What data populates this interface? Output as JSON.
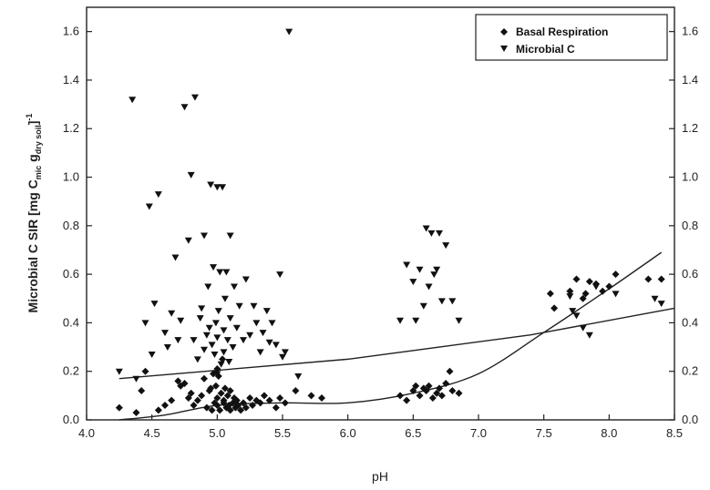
{
  "chart_data": {
    "type": "scatter",
    "xlabel": "pH",
    "ylabel": {
      "prefix": "Microbial C SIR [mg C",
      "sub1": "mic",
      "mid": " g",
      "sub2": "dry soil",
      "bracket": "]",
      "sup": "-1"
    },
    "xlim": [
      4.0,
      8.5
    ],
    "ylim": [
      0.0,
      1.7
    ],
    "x_ticks": [
      "4.0",
      "4.5",
      "5.0",
      "5.5",
      "6.0",
      "6.5",
      "7.0",
      "7.5",
      "8.0",
      "8.5"
    ],
    "y_ticks": [
      "0.0",
      "0.2",
      "0.4",
      "0.6",
      "0.8",
      "1.0",
      "1.2",
      "1.4",
      "1.6"
    ],
    "x_tick_values": [
      4.0,
      4.5,
      5.0,
      5.5,
      6.0,
      6.5,
      7.0,
      7.5,
      8.0,
      8.5
    ],
    "y_tick_values": [
      0.0,
      0.2,
      0.4,
      0.6,
      0.8,
      1.0,
      1.2,
      1.4,
      1.6
    ],
    "grid": false,
    "legend_position": "top-right",
    "series": [
      {
        "name": "Basal Respiration",
        "marker": "diamond",
        "points": [
          [
            4.25,
            0.05
          ],
          [
            4.38,
            0.03
          ],
          [
            4.42,
            0.12
          ],
          [
            4.45,
            0.2
          ],
          [
            4.55,
            0.04
          ],
          [
            4.6,
            0.06
          ],
          [
            4.65,
            0.08
          ],
          [
            4.7,
            0.16
          ],
          [
            4.72,
            0.14
          ],
          [
            4.75,
            0.15
          ],
          [
            4.78,
            0.09
          ],
          [
            4.8,
            0.11
          ],
          [
            4.82,
            0.06
          ],
          [
            4.85,
            0.08
          ],
          [
            4.88,
            0.1
          ],
          [
            4.9,
            0.17
          ],
          [
            4.92,
            0.05
          ],
          [
            4.94,
            0.12
          ],
          [
            4.95,
            0.13
          ],
          [
            4.96,
            0.04
          ],
          [
            4.97,
            0.19
          ],
          [
            4.98,
            0.07
          ],
          [
            4.99,
            0.14
          ],
          [
            5.0,
            0.06
          ],
          [
            5.0,
            0.09
          ],
          [
            5.0,
            0.21
          ],
          [
            5.01,
            0.18
          ],
          [
            5.02,
            0.04
          ],
          [
            5.03,
            0.11
          ],
          [
            5.04,
            0.25
          ],
          [
            5.05,
            0.07
          ],
          [
            5.05,
            0.08
          ],
          [
            5.06,
            0.13
          ],
          [
            5.07,
            0.05
          ],
          [
            5.08,
            0.1
          ],
          [
            5.09,
            0.06
          ],
          [
            5.1,
            0.12
          ],
          [
            5.1,
            0.04
          ],
          [
            5.12,
            0.07
          ],
          [
            5.13,
            0.09
          ],
          [
            5.14,
            0.05
          ],
          [
            5.15,
            0.08
          ],
          [
            5.16,
            0.06
          ],
          [
            5.18,
            0.04
          ],
          [
            5.2,
            0.07
          ],
          [
            5.22,
            0.05
          ],
          [
            5.25,
            0.09
          ],
          [
            5.27,
            0.06
          ],
          [
            5.3,
            0.08
          ],
          [
            5.33,
            0.07
          ],
          [
            5.36,
            0.1
          ],
          [
            5.4,
            0.08
          ],
          [
            5.45,
            0.05
          ],
          [
            5.48,
            0.09
          ],
          [
            5.52,
            0.07
          ],
          [
            5.6,
            0.12
          ],
          [
            5.72,
            0.1
          ],
          [
            5.8,
            0.09
          ],
          [
            6.4,
            0.1
          ],
          [
            6.45,
            0.08
          ],
          [
            6.5,
            0.12
          ],
          [
            6.52,
            0.14
          ],
          [
            6.55,
            0.1
          ],
          [
            6.58,
            0.13
          ],
          [
            6.6,
            0.12
          ],
          [
            6.62,
            0.14
          ],
          [
            6.65,
            0.09
          ],
          [
            6.68,
            0.11
          ],
          [
            6.7,
            0.13
          ],
          [
            6.72,
            0.1
          ],
          [
            6.75,
            0.15
          ],
          [
            6.78,
            0.2
          ],
          [
            6.8,
            0.12
          ],
          [
            6.85,
            0.11
          ],
          [
            7.55,
            0.52
          ],
          [
            7.58,
            0.46
          ],
          [
            7.7,
            0.53
          ],
          [
            7.75,
            0.58
          ],
          [
            7.8,
            0.5
          ],
          [
            7.82,
            0.52
          ],
          [
            7.85,
            0.57
          ],
          [
            7.9,
            0.56
          ],
          [
            7.95,
            0.53
          ],
          [
            8.0,
            0.55
          ],
          [
            8.05,
            0.6
          ],
          [
            8.3,
            0.58
          ],
          [
            8.4,
            0.58
          ]
        ]
      },
      {
        "name": "Microbial C",
        "marker": "triangle-down",
        "points": [
          [
            4.25,
            0.2
          ],
          [
            4.35,
            1.32
          ],
          [
            4.38,
            0.17
          ],
          [
            4.45,
            0.4
          ],
          [
            4.48,
            0.88
          ],
          [
            4.5,
            0.27
          ],
          [
            4.52,
            0.48
          ],
          [
            4.55,
            0.93
          ],
          [
            4.6,
            0.36
          ],
          [
            4.62,
            0.3
          ],
          [
            4.65,
            0.44
          ],
          [
            4.68,
            0.67
          ],
          [
            4.7,
            0.33
          ],
          [
            4.72,
            0.41
          ],
          [
            4.75,
            1.29
          ],
          [
            4.78,
            0.74
          ],
          [
            4.8,
            1.01
          ],
          [
            4.82,
            0.33
          ],
          [
            4.83,
            1.33
          ],
          [
            4.85,
            0.25
          ],
          [
            4.87,
            0.42
          ],
          [
            4.88,
            0.46
          ],
          [
            4.9,
            0.76
          ],
          [
            4.9,
            0.29
          ],
          [
            4.92,
            0.35
          ],
          [
            4.93,
            0.55
          ],
          [
            4.94,
            0.38
          ],
          [
            4.95,
            0.97
          ],
          [
            4.96,
            0.31
          ],
          [
            4.97,
            0.63
          ],
          [
            4.98,
            0.27
          ],
          [
            4.99,
            0.4
          ],
          [
            5.0,
            0.96
          ],
          [
            5.0,
            0.34
          ],
          [
            5.0,
            0.19
          ],
          [
            5.01,
            0.45
          ],
          [
            5.02,
            0.61
          ],
          [
            5.03,
            0.23
          ],
          [
            5.04,
            0.96
          ],
          [
            5.05,
            0.37
          ],
          [
            5.05,
            0.28
          ],
          [
            5.06,
            0.5
          ],
          [
            5.07,
            0.61
          ],
          [
            5.08,
            0.33
          ],
          [
            5.09,
            0.24
          ],
          [
            5.1,
            0.76
          ],
          [
            5.1,
            0.42
          ],
          [
            5.12,
            0.3
          ],
          [
            5.13,
            0.55
          ],
          [
            5.15,
            0.38
          ],
          [
            5.17,
            0.47
          ],
          [
            5.2,
            0.33
          ],
          [
            5.22,
            0.58
          ],
          [
            5.25,
            0.35
          ],
          [
            5.28,
            0.47
          ],
          [
            5.3,
            0.4
          ],
          [
            5.33,
            0.28
          ],
          [
            5.35,
            0.36
          ],
          [
            5.38,
            0.45
          ],
          [
            5.4,
            0.32
          ],
          [
            5.42,
            0.4
          ],
          [
            5.45,
            0.31
          ],
          [
            5.48,
            0.6
          ],
          [
            5.5,
            0.26
          ],
          [
            5.52,
            0.28
          ],
          [
            5.55,
            1.6
          ],
          [
            5.62,
            0.18
          ],
          [
            6.4,
            0.41
          ],
          [
            6.45,
            0.64
          ],
          [
            6.5,
            0.57
          ],
          [
            6.52,
            0.41
          ],
          [
            6.55,
            0.62
          ],
          [
            6.58,
            0.47
          ],
          [
            6.6,
            0.79
          ],
          [
            6.62,
            0.55
          ],
          [
            6.64,
            0.77
          ],
          [
            6.66,
            0.6
          ],
          [
            6.68,
            0.62
          ],
          [
            6.7,
            0.77
          ],
          [
            6.72,
            0.49
          ],
          [
            6.75,
            0.72
          ],
          [
            6.8,
            0.49
          ],
          [
            6.85,
            0.41
          ],
          [
            7.7,
            0.51
          ],
          [
            7.72,
            0.45
          ],
          [
            7.75,
            0.43
          ],
          [
            7.8,
            0.38
          ],
          [
            7.85,
            0.35
          ],
          [
            7.9,
            0.55
          ],
          [
            8.05,
            0.52
          ],
          [
            8.35,
            0.5
          ],
          [
            8.4,
            0.48
          ]
        ]
      }
    ],
    "fit_lines": [
      {
        "kind": "linear",
        "x_range": [
          4.25,
          8.5
        ],
        "points": [
          [
            4.25,
            0.17
          ],
          [
            6.0,
            0.25
          ],
          [
            7.4,
            0.35
          ],
          [
            8.5,
            0.46
          ]
        ]
      },
      {
        "kind": "curve",
        "x_range": [
          4.25,
          8.4
        ],
        "points": [
          [
            4.25,
            0.0
          ],
          [
            4.6,
            0.02
          ],
          [
            5.0,
            0.06
          ],
          [
            5.5,
            0.07
          ],
          [
            6.0,
            0.07
          ],
          [
            6.5,
            0.11
          ],
          [
            7.0,
            0.19
          ],
          [
            7.5,
            0.36
          ],
          [
            8.0,
            0.54
          ],
          [
            8.4,
            0.69
          ]
        ]
      }
    ]
  }
}
